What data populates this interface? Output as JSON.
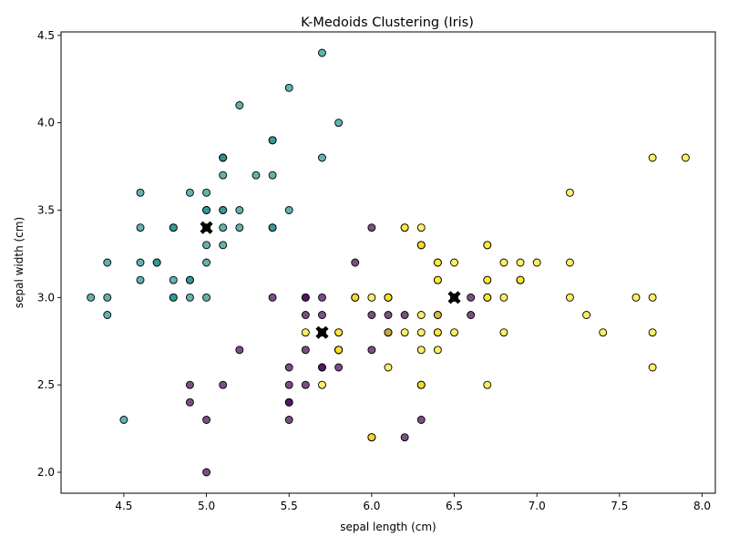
{
  "chart_data": {
    "type": "scatter",
    "title": "K-Medoids Clustering (Iris)",
    "xlabel": "sepal length (cm)",
    "ylabel": "sepal width (cm)",
    "xlim": [
      4.12,
      8.08
    ],
    "ylim": [
      1.88,
      4.52
    ],
    "xticks": [
      4.5,
      5.0,
      5.5,
      6.0,
      6.5,
      7.0,
      7.5,
      8.0
    ],
    "xtick_labels": [
      "4.5",
      "5.0",
      "5.5",
      "6.0",
      "6.5",
      "7.0",
      "7.5",
      "8.0"
    ],
    "yticks": [
      2.0,
      2.5,
      3.0,
      3.5,
      4.0,
      4.5
    ],
    "ytick_labels": [
      "2.0",
      "2.5",
      "3.0",
      "3.5",
      "4.0",
      "4.5"
    ],
    "grid": false,
    "colors": {
      "cluster_0": "#440154",
      "cluster_1": "#21918c",
      "cluster_2": "#fde725",
      "medoid": "#000000"
    },
    "series": [
      {
        "cluster": 1,
        "points": [
          [
            5.1,
            3.5
          ],
          [
            4.9,
            3.0
          ],
          [
            4.7,
            3.2
          ],
          [
            4.6,
            3.1
          ],
          [
            5.0,
            3.6
          ],
          [
            5.4,
            3.9
          ],
          [
            4.6,
            3.4
          ],
          [
            5.0,
            3.4
          ],
          [
            4.4,
            2.9
          ],
          [
            4.9,
            3.1
          ],
          [
            5.4,
            3.7
          ],
          [
            4.8,
            3.4
          ],
          [
            4.8,
            3.0
          ],
          [
            4.3,
            3.0
          ],
          [
            5.8,
            4.0
          ],
          [
            5.7,
            4.4
          ],
          [
            5.4,
            3.9
          ],
          [
            5.1,
            3.5
          ],
          [
            5.7,
            3.8
          ],
          [
            5.1,
            3.8
          ],
          [
            5.4,
            3.4
          ],
          [
            5.1,
            3.7
          ],
          [
            4.6,
            3.6
          ],
          [
            5.1,
            3.3
          ],
          [
            4.8,
            3.4
          ],
          [
            5.0,
            3.0
          ],
          [
            5.0,
            3.4
          ],
          [
            5.2,
            3.5
          ],
          [
            5.2,
            3.4
          ],
          [
            4.7,
            3.2
          ],
          [
            4.8,
            3.1
          ],
          [
            5.4,
            3.4
          ],
          [
            5.2,
            4.1
          ],
          [
            5.5,
            4.2
          ],
          [
            4.9,
            3.1
          ],
          [
            5.0,
            3.2
          ],
          [
            5.5,
            3.5
          ],
          [
            4.9,
            3.6
          ],
          [
            4.4,
            3.0
          ],
          [
            5.1,
            3.4
          ],
          [
            5.0,
            3.5
          ],
          [
            4.5,
            2.3
          ],
          [
            4.4,
            3.2
          ],
          [
            5.0,
            3.5
          ],
          [
            5.1,
            3.8
          ],
          [
            4.8,
            3.0
          ],
          [
            5.1,
            3.8
          ],
          [
            4.6,
            3.2
          ],
          [
            5.3,
            3.7
          ],
          [
            5.0,
            3.3
          ]
        ]
      },
      {
        "cluster": 0,
        "points": [
          [
            5.5,
            2.3
          ],
          [
            5.7,
            2.8
          ],
          [
            6.3,
            3.3
          ],
          [
            4.9,
            2.4
          ],
          [
            5.2,
            2.7
          ],
          [
            5.0,
            2.0
          ],
          [
            5.9,
            3.0
          ],
          [
            6.0,
            2.2
          ],
          [
            6.1,
            2.9
          ],
          [
            5.6,
            2.9
          ],
          [
            5.6,
            3.0
          ],
          [
            5.8,
            2.7
          ],
          [
            6.2,
            2.2
          ],
          [
            5.6,
            2.5
          ],
          [
            5.9,
            3.2
          ],
          [
            6.1,
            2.8
          ],
          [
            6.3,
            2.5
          ],
          [
            6.1,
            2.8
          ],
          [
            5.7,
            2.6
          ],
          [
            6.0,
            2.9
          ],
          [
            5.7,
            2.6
          ],
          [
            5.5,
            2.4
          ],
          [
            5.5,
            2.4
          ],
          [
            5.8,
            2.7
          ],
          [
            6.0,
            2.7
          ],
          [
            5.4,
            3.0
          ],
          [
            6.0,
            3.4
          ],
          [
            6.3,
            2.3
          ],
          [
            5.6,
            3.0
          ],
          [
            5.5,
            2.5
          ],
          [
            5.5,
            2.6
          ],
          [
            6.1,
            3.0
          ],
          [
            5.8,
            2.6
          ],
          [
            5.0,
            2.3
          ],
          [
            5.6,
            2.7
          ],
          [
            5.7,
            3.0
          ],
          [
            5.7,
            2.9
          ],
          [
            6.2,
            2.9
          ],
          [
            5.1,
            2.5
          ],
          [
            5.7,
            2.8
          ],
          [
            4.9,
            2.5
          ],
          [
            6.6,
            3.0
          ],
          [
            6.4,
            2.9
          ],
          [
            6.6,
            2.9
          ]
        ]
      },
      {
        "cluster": 2,
        "points": [
          [
            7.0,
            3.2
          ],
          [
            6.4,
            3.2
          ],
          [
            6.9,
            3.1
          ],
          [
            6.5,
            2.8
          ],
          [
            6.3,
            3.3
          ],
          [
            6.7,
            3.1
          ],
          [
            6.1,
            3.0
          ],
          [
            6.7,
            3.0
          ],
          [
            6.8,
            2.8
          ],
          [
            6.7,
            3.0
          ],
          [
            6.0,
            2.2
          ],
          [
            6.3,
            2.5
          ],
          [
            6.1,
            2.8
          ],
          [
            6.4,
            2.9
          ],
          [
            5.8,
            2.7
          ],
          [
            6.3,
            2.9
          ],
          [
            6.5,
            3.0
          ],
          [
            7.6,
            3.0
          ],
          [
            7.3,
            2.9
          ],
          [
            6.7,
            2.5
          ],
          [
            7.2,
            3.6
          ],
          [
            6.5,
            3.2
          ],
          [
            6.4,
            2.7
          ],
          [
            6.8,
            3.0
          ],
          [
            5.7,
            2.5
          ],
          [
            5.8,
            2.8
          ],
          [
            6.4,
            3.2
          ],
          [
            6.5,
            3.0
          ],
          [
            7.7,
            3.8
          ],
          [
            7.7,
            2.6
          ],
          [
            6.0,
            2.2
          ],
          [
            6.9,
            3.2
          ],
          [
            5.6,
            2.8
          ],
          [
            7.7,
            2.8
          ],
          [
            6.3,
            2.7
          ],
          [
            6.7,
            3.3
          ],
          [
            7.2,
            3.2
          ],
          [
            6.2,
            2.8
          ],
          [
            6.1,
            3.0
          ],
          [
            6.4,
            2.8
          ],
          [
            7.2,
            3.0
          ],
          [
            7.4,
            2.8
          ],
          [
            7.9,
            3.8
          ],
          [
            6.4,
            2.8
          ],
          [
            6.3,
            2.8
          ],
          [
            6.1,
            2.6
          ],
          [
            7.7,
            3.0
          ],
          [
            6.3,
            3.4
          ],
          [
            6.4,
            3.1
          ],
          [
            6.0,
            3.0
          ],
          [
            6.9,
            3.1
          ],
          [
            6.7,
            3.1
          ],
          [
            6.9,
            3.1
          ],
          [
            5.8,
            2.7
          ],
          [
            6.8,
            3.2
          ],
          [
            6.7,
            3.3
          ],
          [
            6.7,
            3.0
          ],
          [
            6.3,
            2.5
          ],
          [
            6.5,
            3.0
          ],
          [
            6.2,
            3.4
          ],
          [
            5.9,
            3.0
          ],
          [
            6.4,
            3.1
          ],
          [
            5.8,
            2.8
          ],
          [
            6.3,
            3.3
          ],
          [
            5.8,
            2.7
          ],
          [
            6.2,
            3.4
          ],
          [
            5.9,
            3.0
          ],
          [
            6.1,
            3.0
          ]
        ]
      }
    ],
    "medoids": [
      [
        5.0,
        3.4
      ],
      [
        5.7,
        2.8
      ],
      [
        6.5,
        3.0
      ]
    ]
  }
}
